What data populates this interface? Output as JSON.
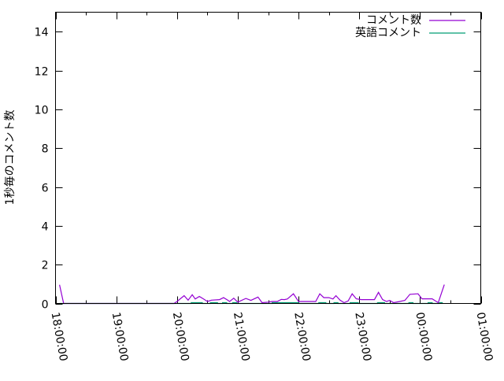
{
  "chart_data": {
    "type": "line",
    "title": "",
    "xlabel": "",
    "ylabel": "1秒毎のコメント数",
    "xlim": [
      "18:00:00",
      "01:00:00"
    ],
    "ylim": [
      0,
      15
    ],
    "x_ticks": [
      "18:00:00",
      "19:00:00",
      "20:00:00",
      "21:00:00",
      "22:00:00",
      "23:00:00",
      "00:00:00",
      "01:00:00"
    ],
    "y_ticks": [
      "0",
      "2",
      "4",
      "6",
      "8",
      "10",
      "12",
      "14"
    ],
    "grid": false,
    "legend_position": "top-right",
    "series": [
      {
        "name": "コメント数",
        "color": "#9400d3",
        "points": [
          [
            "18:04",
            0.96
          ],
          [
            "18:08",
            0
          ],
          [
            "19:57",
            0
          ],
          [
            "20:00",
            0.1
          ],
          [
            "20:07",
            0.4
          ],
          [
            "20:11",
            0.17
          ],
          [
            "20:15",
            0.45
          ],
          [
            "20:18",
            0.23
          ],
          [
            "20:22",
            0.36
          ],
          [
            "20:26",
            0.24
          ],
          [
            "20:30",
            0.1
          ],
          [
            "20:34",
            0.17
          ],
          [
            "20:42",
            0.2
          ],
          [
            "20:46",
            0.3
          ],
          [
            "20:50",
            0.17
          ],
          [
            "20:52",
            0.1
          ],
          [
            "20:56",
            0.27
          ],
          [
            "21:00",
            0.07
          ],
          [
            "21:08",
            0.26
          ],
          [
            "21:13",
            0.16
          ],
          [
            "21:20",
            0.33
          ],
          [
            "21:24",
            0.04
          ],
          [
            "21:30",
            0.07
          ],
          [
            "21:34",
            0.1
          ],
          [
            "21:39",
            0.1
          ],
          [
            "21:43",
            0.21
          ],
          [
            "21:46",
            0.2
          ],
          [
            "21:49",
            0.23
          ],
          [
            "21:55",
            0.5
          ],
          [
            "22:00",
            0.1
          ],
          [
            "22:04",
            0.1
          ],
          [
            "22:17",
            0.1
          ],
          [
            "22:21",
            0.5
          ],
          [
            "22:25",
            0.3
          ],
          [
            "22:30",
            0.3
          ],
          [
            "22:34",
            0.23
          ],
          [
            "22:37",
            0.4
          ],
          [
            "22:41",
            0.17
          ],
          [
            "22:45",
            0.04
          ],
          [
            "22:49",
            0.13
          ],
          [
            "22:53",
            0.5
          ],
          [
            "22:57",
            0.24
          ],
          [
            "23:02",
            0.2
          ],
          [
            "23:15",
            0.2
          ],
          [
            "23:19",
            0.57
          ],
          [
            "23:23",
            0.2
          ],
          [
            "23:27",
            0.1
          ],
          [
            "23:30",
            0.16
          ],
          [
            "23:34",
            0.04
          ],
          [
            "23:40",
            0.1
          ],
          [
            "23:45",
            0.16
          ],
          [
            "23:50",
            0.47
          ],
          [
            "23:58",
            0.5
          ],
          [
            "00:02",
            0.24
          ],
          [
            "00:12",
            0.24
          ],
          [
            "00:14",
            0.17
          ],
          [
            "00:18",
            0.04
          ],
          [
            "00:24",
            0.97
          ]
        ]
      },
      {
        "name": "英語コメント",
        "color": "#009e73",
        "points": [
          [
            "18:04",
            0
          ],
          [
            "20:14",
            0
          ],
          [
            "20:14",
            0.04
          ],
          [
            "20:25",
            0.04
          ],
          [
            "20:25",
            0
          ],
          [
            "20:33",
            0
          ],
          [
            "20:33",
            0.04
          ],
          [
            "20:40",
            0.04
          ],
          [
            "20:40",
            0
          ],
          [
            "20:45",
            0
          ],
          [
            "20:45",
            0.04
          ],
          [
            "20:49",
            0.04
          ],
          [
            "20:49",
            0
          ],
          [
            "20:55",
            0
          ],
          [
            "20:55",
            0.04
          ],
          [
            "20:59",
            0.04
          ],
          [
            "20:59",
            0
          ],
          [
            "21:34",
            0
          ],
          [
            "21:34",
            0.04
          ],
          [
            "22:00",
            0.04
          ],
          [
            "22:00",
            0
          ],
          [
            "22:20",
            0
          ],
          [
            "22:20",
            0.04
          ],
          [
            "22:27",
            0.04
          ],
          [
            "22:27",
            0
          ],
          [
            "22:35",
            0
          ],
          [
            "22:35",
            0.04
          ],
          [
            "22:39",
            0.04
          ],
          [
            "22:39",
            0
          ],
          [
            "22:51",
            0
          ],
          [
            "22:51",
            0.04
          ],
          [
            "22:59",
            0.04
          ],
          [
            "22:59",
            0
          ],
          [
            "23:18",
            0
          ],
          [
            "23:18",
            0.04
          ],
          [
            "23:25",
            0.04
          ],
          [
            "23:25",
            0
          ],
          [
            "23:49",
            0
          ],
          [
            "23:49",
            0.04
          ],
          [
            "23:53",
            0.04
          ],
          [
            "23:53",
            0
          ],
          [
            "00:08",
            0
          ],
          [
            "00:08",
            0.04
          ],
          [
            "00:12",
            0.04
          ],
          [
            "00:12",
            0
          ],
          [
            "00:19",
            0
          ],
          [
            "00:19",
            0.04
          ],
          [
            "00:22",
            0.04
          ],
          [
            "00:22",
            0
          ]
        ]
      }
    ]
  }
}
